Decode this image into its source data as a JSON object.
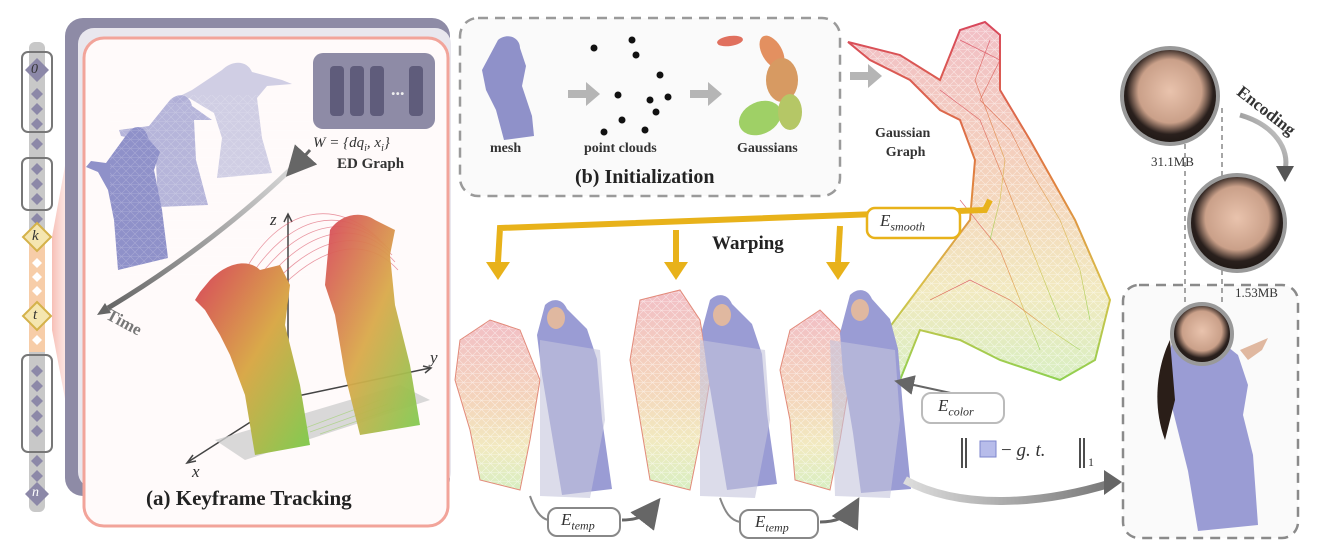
{
  "timeline": {
    "markers": [
      {
        "label": "0"
      },
      {
        "label": "k"
      },
      {
        "label": "t"
      },
      {
        "label": "n"
      }
    ]
  },
  "panel_a": {
    "title": "(a) Keyframe Tracking",
    "time_label": "Time",
    "ed_formula": "W = {dq",
    "ed_formula_sub_i": "i",
    "ed_formula_mid": ", x",
    "ed_formula_end": "}",
    "ed_graph_label": "ED  Graph",
    "ed_ellipsis": "...",
    "axis_x": "x",
    "axis_y": "y",
    "axis_z": "z"
  },
  "panel_b": {
    "title": "(b) Initialization",
    "mesh_label": "mesh",
    "points_label": "point clouds",
    "gaussians_label": "Gaussians"
  },
  "gaussian_graph_label": [
    "Gaussian",
    "Graph"
  ],
  "warping_label": "Warping",
  "e_smooth": {
    "base": "E",
    "sub": "smooth"
  },
  "e_temp_1": {
    "base": "E",
    "sub": "temp"
  },
  "e_temp_2": {
    "base": "E",
    "sub": "temp"
  },
  "e_color": {
    "base": "E",
    "sub": "color"
  },
  "color_loss": {
    "minus": "−",
    "gt": "g. t.",
    "norm_sub": "1"
  },
  "encoding": {
    "label": "Encoding",
    "size_before": "31.1MB",
    "size_after": "1.53MB"
  },
  "colors": {
    "panel_a_border": "#f2a49a",
    "panel_a_fill": "#fffafa",
    "panel_bg": "#8e8ba6",
    "timeline_bar": "#bdbdbd",
    "keyframe_bar": "#f6c7a2",
    "marker_fill": "#8c88a8",
    "keyframe_marker_fill": "#f5e6b0",
    "keyframe_marker_stroke": "#d4b24a",
    "warp_arrow": "#e8b21a",
    "dash_gray": "#9a9a9a",
    "mesh_blue": "#8f91c9",
    "red": "#d8475c",
    "green": "#9ccf50"
  }
}
